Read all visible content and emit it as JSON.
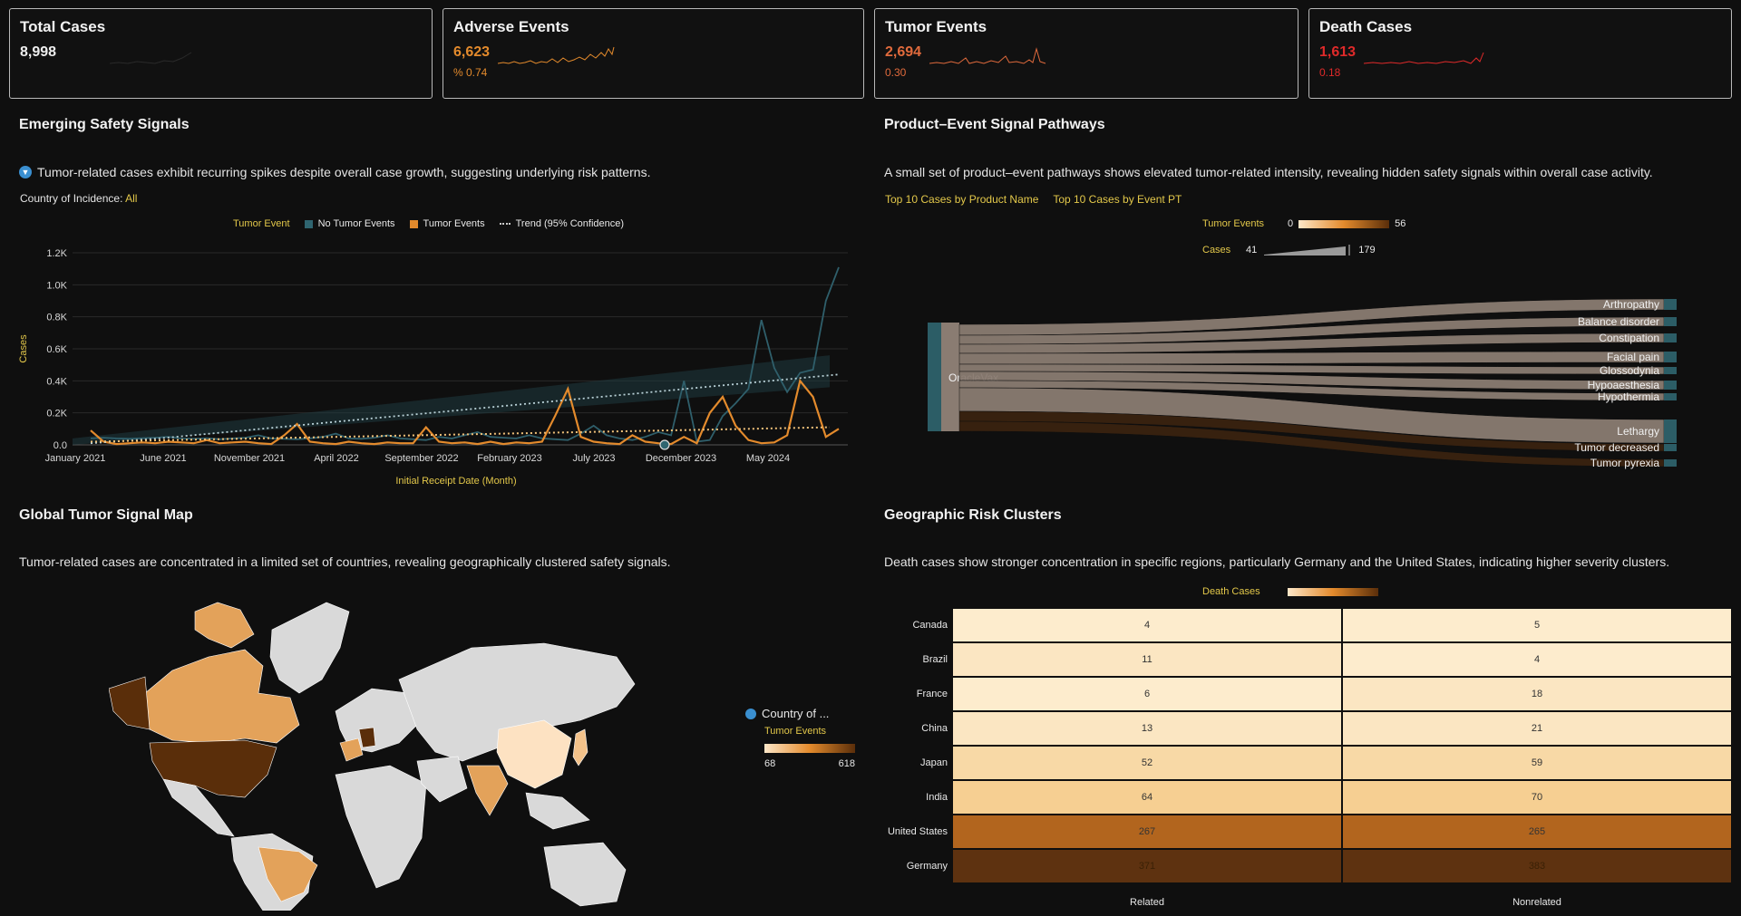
{
  "kpis": [
    {
      "title": "Total Cases",
      "value": "8,998",
      "sub": "",
      "color": "#eeeeee",
      "spark_color": "#333333"
    },
    {
      "title": "Adverse Events",
      "value": "6,623",
      "sub": "%  0.74",
      "color": "#e38a2c",
      "spark_color": "#e38a2c"
    },
    {
      "title": "Tumor Events",
      "value": "2,694",
      "sub": "0.30",
      "color": "#e06a3c",
      "spark_color": "#e06a3c"
    },
    {
      "title": "Death Cases",
      "value": "1,613",
      "sub": "0.18",
      "color": "#e02a2a",
      "spark_color": "#e02a2a"
    }
  ],
  "emerging": {
    "title": "Emerging Safety Signals",
    "icon": "filter-icon",
    "description": "Tumor-related cases exhibit recurring spikes despite overall case growth, suggesting underlying risk patterns.",
    "filter_label": "Country of Incidence:",
    "filter_value": "All",
    "legend_title": "Tumor Event",
    "legend_items": [
      "No Tumor Events",
      "Tumor Events",
      "Trend (95% Confidence)"
    ]
  },
  "pathways": {
    "title": "Product–Event Signal Pathways",
    "description": "A small set of product–event pathways shows elevated tumor-related intensity, revealing hidden safety signals within overall case activity.",
    "tabs": [
      "Top 10 Cases by Product Name",
      "Top 10 Cases by Event PT"
    ],
    "legend_tumor_label": "Tumor Events",
    "legend_tumor_min": "0",
    "legend_tumor_max": "56",
    "legend_cases_label": "Cases",
    "legend_cases_min": "41",
    "legend_cases_max": "179",
    "source": "OracleVax",
    "targets": [
      "Arthropathy",
      "Balance disorder",
      "Constipation",
      "Facial pain",
      "Glossodynia",
      "Hypoaesthesia",
      "Hypothermia",
      "Lethargy",
      "Tumor decreased",
      "Tumor pyrexia"
    ]
  },
  "map": {
    "title": "Global Tumor Signal Map",
    "description": "Tumor-related cases are concentrated in a limited set of countries, revealing geographically clustered safety signals.",
    "legend_title": "Country of ...",
    "legend_sub": "Tumor Events",
    "legend_min": "68",
    "legend_max": "618"
  },
  "geo": {
    "title": "Geographic Risk Clusters",
    "description": "Death cases show stronger concentration in specific regions, particularly Germany and the United States, indicating higher severity clusters.",
    "legend_label": "Death Cases",
    "columns": [
      "Related",
      "Nonrelated"
    ],
    "rows": [
      {
        "country": "Canada",
        "related": "4",
        "nonrelated": "5"
      },
      {
        "country": "Brazil",
        "related": "11",
        "nonrelated": "4"
      },
      {
        "country": "France",
        "related": "6",
        "nonrelated": "18"
      },
      {
        "country": "China",
        "related": "13",
        "nonrelated": "21"
      },
      {
        "country": "Japan",
        "related": "52",
        "nonrelated": "59"
      },
      {
        "country": "India",
        "related": "64",
        "nonrelated": "70"
      },
      {
        "country": "United States",
        "related": "267",
        "nonrelated": "265"
      },
      {
        "country": "Germany",
        "related": "371",
        "nonrelated": "383"
      }
    ]
  },
  "chart_data": {
    "type": "line",
    "title": "Emerging Safety Signals",
    "xlabel": "Initial Receipt Date (Month)",
    "ylabel": "Cases",
    "ylim": [
      0,
      1200
    ],
    "yticks": [
      "0.0",
      "0.2K",
      "0.4K",
      "0.6K",
      "0.8K",
      "1.0K",
      "1.2K"
    ],
    "x_tick_labels": [
      "January 2021",
      "June 2021",
      "November 2021",
      "April 2022",
      "September 2022",
      "February 2023",
      "July 2023",
      "December 2023",
      "May 2024"
    ],
    "series": [
      {
        "name": "No Tumor Events",
        "color": "#2f5f6b",
        "values": [
          40,
          45,
          40,
          38,
          42,
          45,
          50,
          40,
          38,
          42,
          35,
          40,
          45,
          60,
          40,
          38,
          35,
          40,
          50,
          70,
          40,
          38,
          45,
          60,
          40,
          35,
          30,
          50,
          40,
          60,
          80,
          50,
          45,
          40,
          60,
          40,
          35,
          30,
          70,
          120,
          60,
          40,
          30,
          50,
          80,
          60,
          400,
          20,
          30,
          180,
          260,
          350,
          780,
          480,
          330,
          450,
          470,
          900,
          1110
        ]
      },
      {
        "name": "Tumor Events",
        "color": "#e38a2c",
        "values": [
          90,
          20,
          5,
          10,
          15,
          10,
          20,
          15,
          10,
          30,
          10,
          15,
          20,
          10,
          5,
          60,
          130,
          20,
          10,
          5,
          20,
          10,
          5,
          15,
          10,
          10,
          110,
          20,
          10,
          15,
          5,
          20,
          5,
          15,
          10,
          20,
          180,
          350,
          50,
          20,
          10,
          5,
          60,
          20,
          10,
          5,
          50,
          10,
          200,
          300,
          120,
          30,
          10,
          15,
          60,
          400,
          300,
          50,
          100
        ]
      },
      {
        "name": "Trend (95% Confidence)",
        "color": "#8fb0b8",
        "values": [
          10,
          40,
          80,
          120,
          160,
          200,
          240,
          280,
          320,
          360,
          400,
          440
        ]
      }
    ]
  }
}
